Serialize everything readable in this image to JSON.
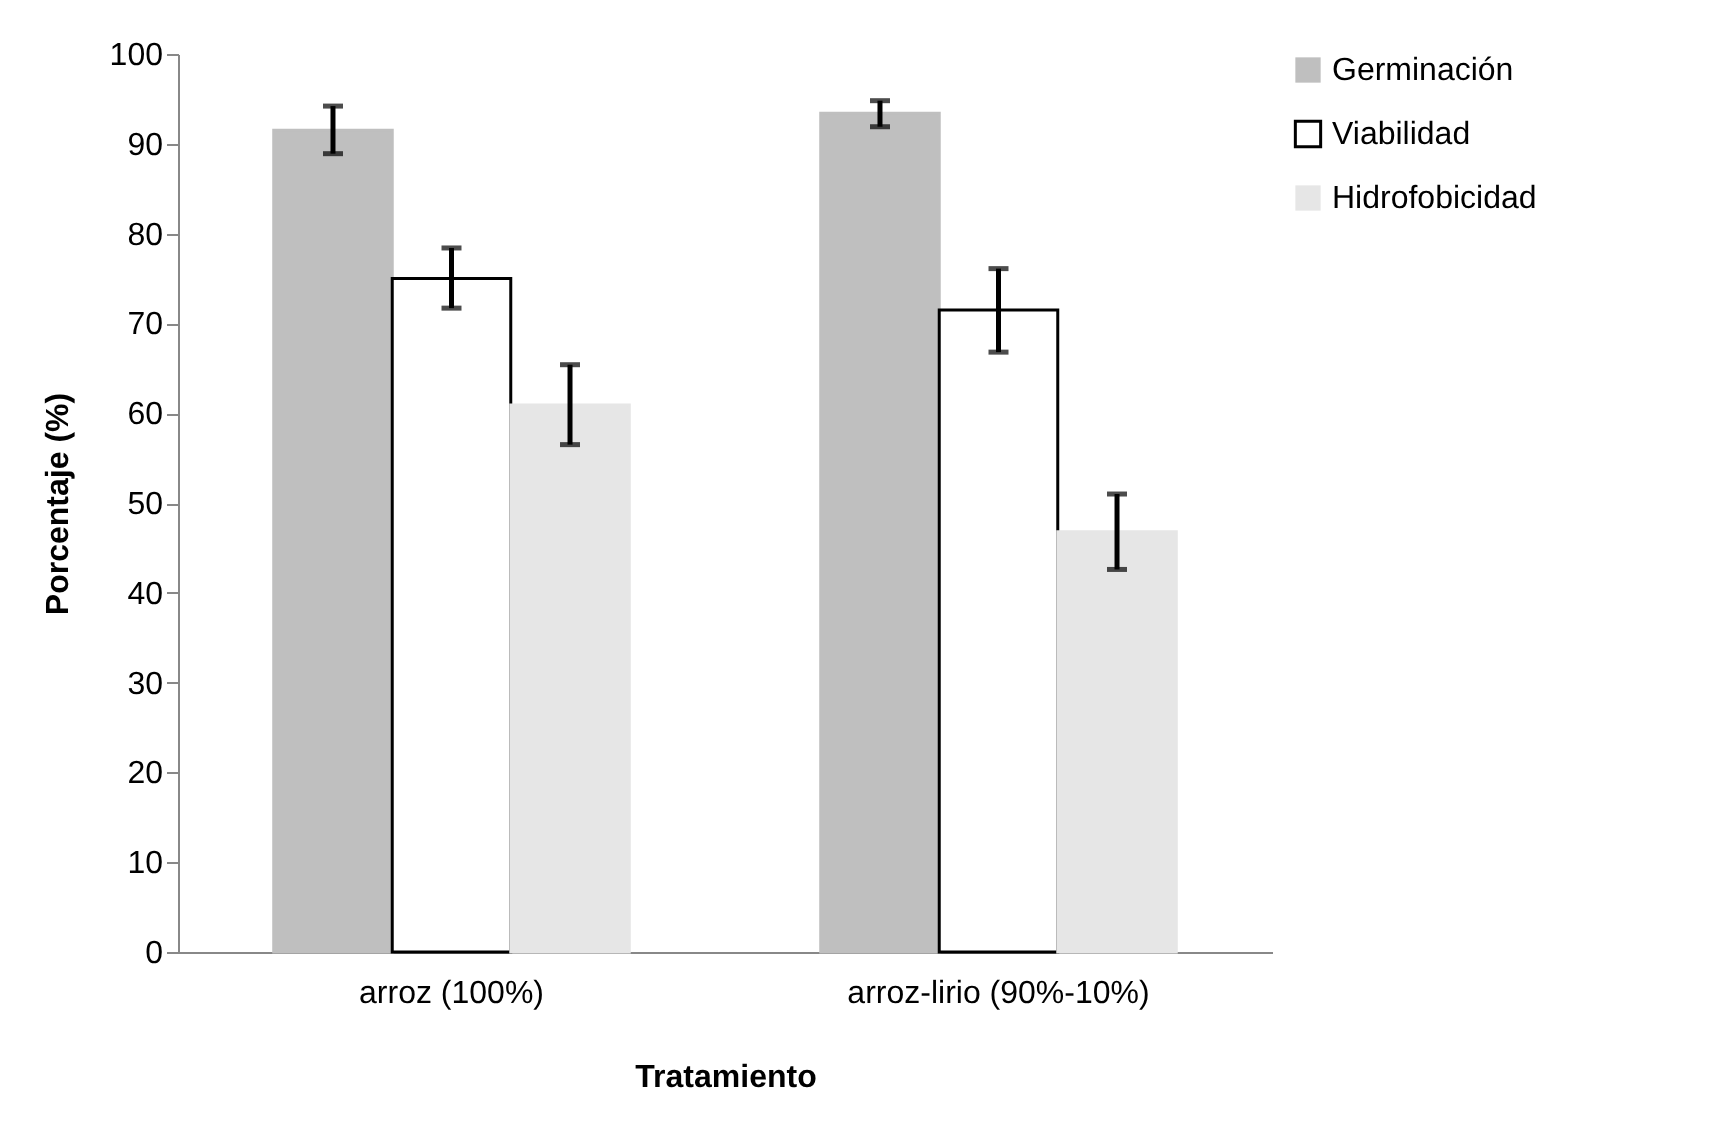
{
  "chart_data": {
    "type": "bar",
    "xlabel": "Tratamiento",
    "ylabel": "Porcentaje (%)",
    "categories": [
      "arroz (100%)",
      "arroz-lirio (90%-10%)"
    ],
    "series": [
      {
        "name": "Germinación",
        "color": "#bfbfbf",
        "values": [
          91.5,
          93.4
        ],
        "errors": [
          [
            88.9,
            94.2
          ],
          [
            91.9,
            94.8
          ]
        ]
      },
      {
        "name": "Viabilidad",
        "color": "#ffffff",
        "values": [
          75.0,
          71.5
        ],
        "errors": [
          [
            71.7,
            78.4
          ],
          [
            66.8,
            76.1
          ]
        ]
      },
      {
        "name": "Hidrofobicidad",
        "color": "#e6e6e6",
        "values": [
          60.9,
          46.8
        ],
        "errors": [
          [
            56.5,
            65.4
          ],
          [
            42.6,
            51.0
          ]
        ]
      }
    ],
    "ylim": [
      0,
      100
    ],
    "yticks": [
      0,
      10,
      20,
      30,
      40,
      50,
      60,
      70,
      80,
      90,
      100
    ],
    "grid": false,
    "legend": "right"
  }
}
